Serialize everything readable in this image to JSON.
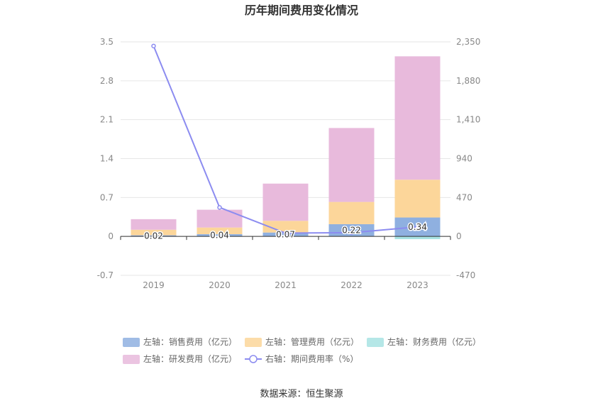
{
  "chart_data": {
    "type": "bar",
    "title": "历年期间费用变化情况",
    "categories": [
      "2019",
      "2020",
      "2021",
      "2022",
      "2023"
    ],
    "stacked": true,
    "left_axis": {
      "min": -0.7,
      "max": 3.5,
      "ticks": [
        "-0.7",
        "0",
        "0.7",
        "1.4",
        "2.1",
        "2.8",
        "3.5"
      ]
    },
    "right_axis": {
      "min": -470,
      "max": 2350,
      "ticks": [
        "-470",
        "0",
        "470",
        "940",
        "1,410",
        "1,880",
        "2,350"
      ]
    },
    "series": [
      {
        "name": "左轴：销售费用（亿元）",
        "axis": "left",
        "type": "bar",
        "color": "#8fb0e0",
        "values": [
          0.02,
          0.04,
          0.07,
          0.22,
          0.34
        ]
      },
      {
        "name": "左轴：管理费用（亿元）",
        "axis": "left",
        "type": "bar",
        "color": "#fcd69a",
        "values": [
          0.1,
          0.12,
          0.21,
          0.4,
          0.68
        ]
      },
      {
        "name": "左轴：财务费用（亿元）",
        "axis": "left",
        "type": "bar",
        "color": "#a8e3e3",
        "values": [
          0.0,
          0.0,
          0.0,
          0.0,
          -0.05
        ]
      },
      {
        "name": "左轴：研发费用（亿元）",
        "axis": "left",
        "type": "bar",
        "color": "#e8badc",
        "values": [
          0.19,
          0.32,
          0.67,
          1.33,
          2.22
        ]
      },
      {
        "name": "右轴：期间费用率（%）",
        "axis": "right",
        "type": "line",
        "color": "#8c8cf0",
        "values": [
          2300,
          350,
          40,
          45,
          115
        ]
      }
    ],
    "data_labels": [
      "0.02",
      "0.04",
      "0.07",
      "0.22",
      "0.34"
    ],
    "grid": true,
    "legend_position": "bottom"
  },
  "source_text": "数据来源：恒生聚源"
}
